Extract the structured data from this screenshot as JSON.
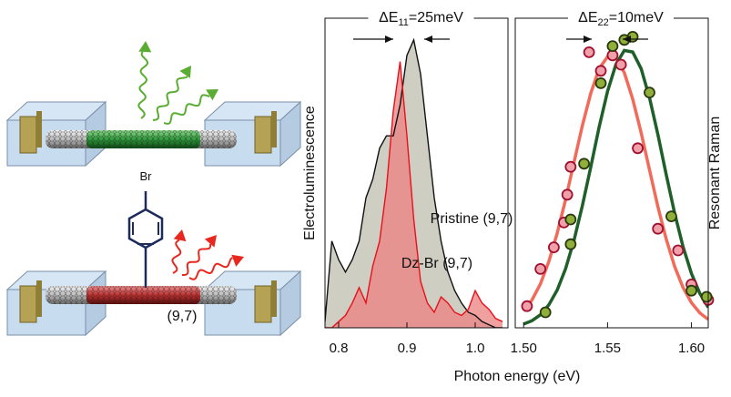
{
  "schematic": {
    "substituent": "Br",
    "chirality": "(9,7)"
  },
  "chart_data": [
    {
      "type": "line",
      "xlabel": "Photon energy (eV)",
      "ylabel": "Electroluminescence",
      "annotation": {
        "text": "ΔE",
        "sub": "11",
        "rest": "=25meV"
      },
      "xlim": [
        0.78,
        1.048
      ],
      "ylim": [
        0,
        1
      ],
      "xticks": [
        0.8,
        0.9,
        {
          "value": 1.0,
          "label": "1.0"
        }
      ],
      "x": [
        0.78,
        0.79,
        0.8,
        0.81,
        0.82,
        0.83,
        0.84,
        0.85,
        0.86,
        0.87,
        0.88,
        0.89,
        0.9,
        0.91,
        0.92,
        0.93,
        0.94,
        0.95,
        0.96,
        0.97,
        0.98,
        0.99,
        1.0,
        1.01,
        1.02,
        1.03,
        1.04
      ],
      "series": [
        {
          "name": "Pristine (9,7)",
          "color": "#111111",
          "fill": "#c9c9bd",
          "values": [
            0.02,
            0.28,
            0.22,
            0.18,
            0.22,
            0.28,
            0.42,
            0.48,
            0.58,
            0.62,
            0.62,
            0.72,
            0.88,
            0.93,
            0.82,
            0.62,
            0.42,
            0.28,
            0.18,
            0.12,
            0.08,
            0.05,
            0.04,
            0.02,
            0.01,
            0.0,
            0.0
          ]
        },
        {
          "name": "Dz-Br (9,7)",
          "color": "#e8101a",
          "fill": "#ec8080",
          "values": [
            0.0,
            0.0,
            0.02,
            0.04,
            0.08,
            0.13,
            0.08,
            0.2,
            0.28,
            0.45,
            0.7,
            0.86,
            0.62,
            0.35,
            0.15,
            0.08,
            0.05,
            0.1,
            0.08,
            0.05,
            0.04,
            0.06,
            0.12,
            0.08,
            0.06,
            0.03,
            0.02
          ]
        }
      ]
    },
    {
      "type": "scatter",
      "ylabel": "Resonant Raman",
      "annotation": {
        "text": "ΔE",
        "sub": "22",
        "rest": "=10meV"
      },
      "xlim": [
        1.495,
        1.61
      ],
      "ylim": [
        0,
        1
      ],
      "xticks": [
        {
          "value": 1.5,
          "label": "1.50"
        },
        1.55,
        {
          "value": 1.6,
          "label": "1.60"
        }
      ],
      "series": [
        {
          "style": "line",
          "color": "#f26a5a",
          "x": [
            1.5,
            1.505,
            1.51,
            1.515,
            1.52,
            1.525,
            1.53,
            1.535,
            1.54,
            1.545,
            1.55,
            1.555,
            1.56,
            1.565,
            1.57,
            1.575,
            1.58,
            1.585,
            1.59,
            1.595,
            1.6,
            1.605,
            1.61
          ],
          "values": [
            0.054,
            0.09,
            0.142,
            0.214,
            0.306,
            0.414,
            0.534,
            0.653,
            0.758,
            0.837,
            0.876,
            0.872,
            0.824,
            0.739,
            0.63,
            0.51,
            0.391,
            0.286,
            0.198,
            0.13,
            0.081,
            0.048,
            0.027
          ]
        },
        {
          "style": "line",
          "color": "#1f5f2a",
          "x": [
            1.5,
            1.505,
            1.51,
            1.515,
            1.52,
            1.525,
            1.53,
            1.535,
            1.54,
            1.545,
            1.55,
            1.555,
            1.56,
            1.565,
            1.57,
            1.575,
            1.58,
            1.585,
            1.59,
            1.595,
            1.6,
            1.605,
            1.61
          ],
          "values": [
            0.012,
            0.023,
            0.042,
            0.074,
            0.122,
            0.191,
            0.282,
            0.394,
            0.52,
            0.649,
            0.764,
            0.851,
            0.896,
            0.891,
            0.837,
            0.743,
            0.624,
            0.494,
            0.37,
            0.262,
            0.175,
            0.111,
            0.066
          ]
        },
        {
          "style": "marker",
          "color": "#f0a0a8",
          "edgecolor": "#a01030",
          "x": [
            1.502,
            1.51,
            1.518,
            1.524,
            1.526,
            1.528,
            1.539,
            1.546,
            1.553,
            1.558,
            1.568,
            1.58,
            1.592,
            1.6,
            1.61
          ],
          "values": [
            0.07,
            0.19,
            0.26,
            0.34,
            0.43,
            0.52,
            0.89,
            0.83,
            0.88,
            0.85,
            0.58,
            0.32,
            0.25,
            0.14,
            0.09
          ]
        },
        {
          "style": "marker",
          "color": "#8fae3a",
          "edgecolor": "#2a3a10",
          "x": [
            1.513,
            1.528,
            1.528,
            1.536,
            1.546,
            1.553,
            1.56,
            1.565,
            1.575,
            1.588,
            1.6,
            1.609
          ],
          "values": [
            0.05,
            0.27,
            0.35,
            0.53,
            0.79,
            0.91,
            0.93,
            0.94,
            0.76,
            0.36,
            0.12,
            0.1
          ]
        }
      ]
    }
  ]
}
